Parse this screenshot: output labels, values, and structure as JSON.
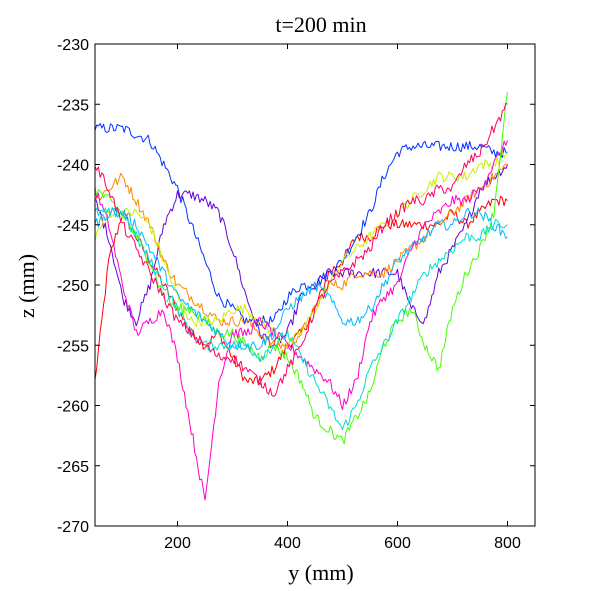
{
  "chart_data": {
    "type": "line",
    "title": "t=200 min",
    "xlabel": "y (mm)",
    "ylabel": "z (mm)",
    "xlim": [
      50,
      850
    ],
    "ylim": [
      -270,
      -230
    ],
    "xticks": [
      200,
      400,
      600,
      800
    ],
    "yticks": [
      -230,
      -235,
      -240,
      -245,
      -250,
      -255,
      -260,
      -265,
      -270
    ],
    "x": [
      50,
      75,
      100,
      125,
      150,
      175,
      200,
      225,
      250,
      275,
      300,
      325,
      350,
      375,
      400,
      425,
      450,
      475,
      500,
      525,
      550,
      575,
      600,
      625,
      650,
      675,
      700,
      725,
      750,
      775,
      800
    ],
    "series": [
      {
        "color": "#ff0000",
        "values": [
          -258,
          -248,
          -244,
          -246,
          -248,
          -250,
          -252,
          -254,
          -255,
          -254,
          -256,
          -258,
          -258,
          -257,
          -255,
          -254,
          -252,
          -249,
          -248,
          -246,
          -246,
          -245,
          -245,
          -245,
          -245,
          -245,
          -244,
          -245,
          -244,
          -243,
          -243
        ]
      },
      {
        "color": "#0033ff",
        "values": [
          -237,
          -237,
          -237,
          -237.5,
          -238,
          -240,
          -242,
          -245,
          -248,
          -251,
          -252,
          -253,
          -253,
          -253,
          -251,
          -250,
          -250,
          -249,
          -248,
          -246,
          -244,
          -241,
          -239,
          -238.5,
          -238.5,
          -238.5,
          -238.5,
          -238.5,
          -238.5,
          -239,
          -239
        ]
      },
      {
        "color": "#6600dd",
        "values": [
          -243,
          -246,
          -251,
          -253,
          -250,
          -245,
          -242.5,
          -242.5,
          -243,
          -244,
          -247,
          -251,
          -254,
          -255,
          -254,
          -251,
          -250,
          -249,
          -249,
          -249,
          -249,
          -249,
          -249,
          -252,
          -253,
          -249,
          -247,
          -245,
          -242,
          -241,
          -240
        ]
      },
      {
        "color": "#ff8800",
        "values": [
          -243,
          -242,
          -241,
          -243,
          -245,
          -248,
          -250,
          -251,
          -252,
          -253,
          -253,
          -253,
          -254,
          -255,
          -255,
          -254,
          -252,
          -250,
          -250,
          -249,
          -249,
          -249,
          -248,
          -247,
          -246,
          -245,
          -244,
          -243,
          -242,
          -241,
          -240
        ]
      },
      {
        "color": "#ccee00",
        "values": [
          -246,
          -244,
          -244,
          -244,
          -245,
          -248,
          -251,
          -253,
          -253,
          -253,
          -252,
          -252,
          -253,
          -254,
          -255,
          -254,
          -252,
          -250,
          -248,
          -247,
          -246,
          -245,
          -244,
          -243,
          -242,
          -241,
          -241,
          -241,
          -240,
          -240,
          -239
        ]
      },
      {
        "color": "#ff00cc",
        "values": [
          -242,
          -245,
          -250,
          -254,
          -253,
          -252,
          -256,
          -262,
          -268,
          -258,
          -254,
          -254,
          -253,
          -254,
          -255,
          -256,
          -257,
          -258,
          -260,
          -258,
          -253,
          -251,
          -250,
          -247,
          -245,
          -244,
          -243,
          -243,
          -242,
          -240,
          -238
        ]
      },
      {
        "color": "#44ff00",
        "values": [
          -242,
          -243,
          -244,
          -246,
          -248,
          -251,
          -252,
          -252,
          -253,
          -254,
          -254,
          -255,
          -256,
          -255,
          -256,
          -258,
          -261,
          -262,
          -263,
          -261,
          -259,
          -255,
          -253,
          -252,
          -255,
          -257,
          -252,
          -249,
          -247,
          -244,
          -234
        ]
      },
      {
        "color": "#00ddcc",
        "values": [
          -244,
          -244,
          -244,
          -246,
          -248,
          -250,
          -252,
          -254,
          -255,
          -255,
          -255,
          -255,
          -256,
          -255,
          -254,
          -256,
          -258,
          -260,
          -262,
          -260,
          -257,
          -255,
          -253,
          -251,
          -249,
          -248,
          -247,
          -246,
          -246,
          -245,
          -245
        ]
      },
      {
        "color": "#00bbff",
        "values": [
          -245,
          -244,
          -244,
          -245,
          -247,
          -249,
          -251,
          -252,
          -253,
          -254,
          -255,
          -255,
          -255,
          -254,
          -252,
          -251,
          -250,
          -251,
          -253,
          -253,
          -252,
          -250,
          -248,
          -247,
          -246,
          -245,
          -245,
          -244,
          -244,
          -245,
          -246
        ]
      },
      {
        "color": "#ff0066",
        "values": [
          -240,
          -242,
          -245,
          -247,
          -249,
          -251,
          -253,
          -254,
          -255,
          -256,
          -256,
          -257,
          -258,
          -259,
          -257,
          -255,
          -252,
          -250,
          -249,
          -248,
          -247,
          -245,
          -244,
          -243,
          -243,
          -242,
          -242,
          -240,
          -239,
          -237,
          -235
        ]
      }
    ]
  }
}
